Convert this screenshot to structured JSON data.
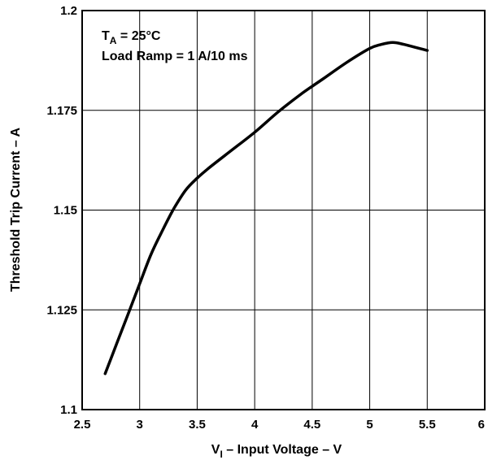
{
  "chart_data": {
    "type": "line",
    "xlabel_main": "V",
    "xlabel_sub": "I",
    "xlabel_rest": " – Input Voltage – V",
    "ylabel": "Threshold Trip Current – A",
    "xlim": [
      2.5,
      6
    ],
    "ylim": [
      1.1,
      1.2
    ],
    "xticks": [
      2.5,
      3,
      3.5,
      4,
      4.5,
      5,
      5.5,
      6
    ],
    "xtick_labels": [
      "2.5",
      "3",
      "3.5",
      "4",
      "4.5",
      "5",
      "5.5",
      "6"
    ],
    "yticks": [
      1.1,
      1.125,
      1.15,
      1.175,
      1.2
    ],
    "ytick_labels": [
      "1.1",
      "1.125",
      "1.15",
      "1.175",
      "1.2"
    ],
    "grid": true,
    "annotations": {
      "line1_main": "T",
      "line1_sub": "A",
      "line1_rest": " = 25°C",
      "line2": "Load Ramp = 1 A/10 ms"
    },
    "series": [
      {
        "x": [
          2.7,
          2.8,
          2.9,
          3.0,
          3.1,
          3.2,
          3.3,
          3.4,
          3.5,
          3.6,
          3.8,
          4.0,
          4.2,
          4.4,
          4.6,
          4.8,
          5.0,
          5.1,
          5.2,
          5.3,
          5.5
        ],
        "y": [
          1.109,
          1.1165,
          1.124,
          1.1315,
          1.139,
          1.145,
          1.1505,
          1.155,
          1.158,
          1.1605,
          1.165,
          1.1695,
          1.1745,
          1.179,
          1.183,
          1.187,
          1.1905,
          1.1915,
          1.192,
          1.1915,
          1.19
        ]
      }
    ]
  }
}
